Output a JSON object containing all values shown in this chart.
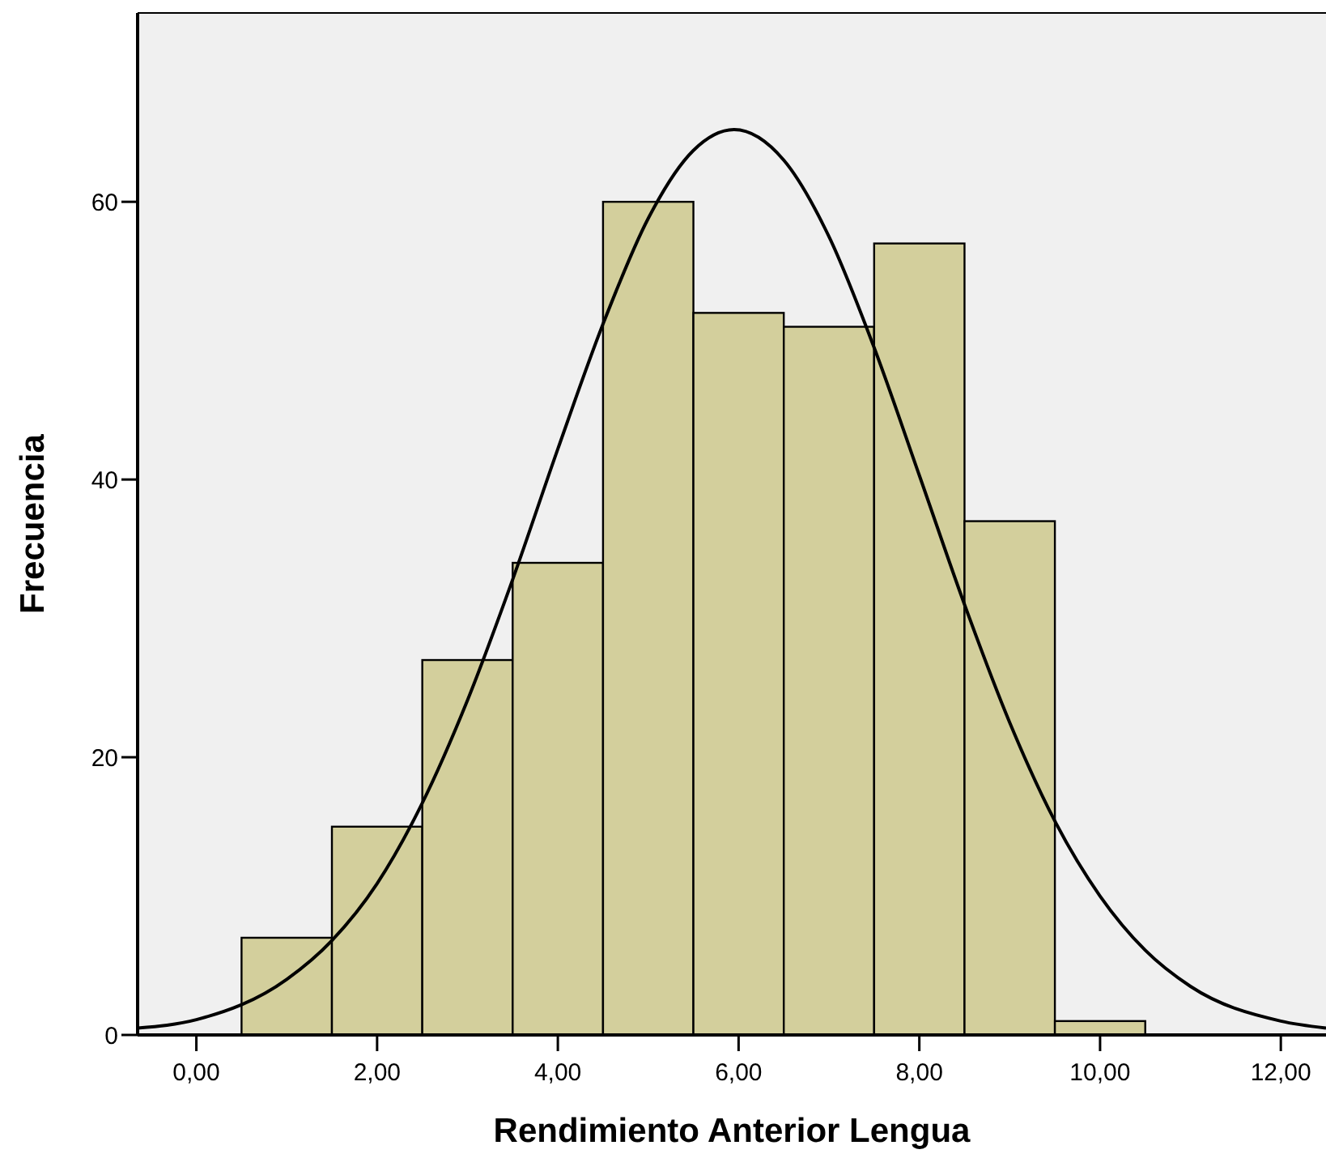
{
  "chart_data": {
    "type": "histogram",
    "xlabel": "Rendimiento Anterior Lengua",
    "ylabel": "Frecuencia",
    "bins": [
      0.5,
      1.5,
      2.5,
      3.5,
      4.5,
      5.5,
      6.5,
      7.5,
      8.5,
      9.5,
      10.5
    ],
    "series": [
      {
        "color": "#d3cf9c",
        "values": [
          7,
          15,
          27,
          34,
          60,
          52,
          51,
          57,
          37,
          1
        ]
      },
      {
        "type": "line",
        "color": "#000000",
        "x": [
          -0.65,
          0,
          1,
          1.5,
          2,
          2.5,
          3,
          3.5,
          4,
          4.5,
          5,
          5.5,
          5.95,
          6.5,
          7,
          7.5,
          8,
          8.5,
          9,
          9.5,
          10,
          10.5,
          11,
          12,
          12.5
        ],
        "values": [
          0.5,
          1.1,
          4,
          6.8,
          10.9,
          16.7,
          24.1,
          32.8,
          42.2,
          51.2,
          58.8,
          63.7,
          65.2,
          63.0,
          57.5,
          49.5,
          40.3,
          31.0,
          22.5,
          15.4,
          10.0,
          6.1,
          3.5,
          1,
          0.5
        ]
      }
    ],
    "xlim": [
      -0.65,
      12.5
    ],
    "xticks": [
      {
        "value": 0,
        "label": "0,00"
      },
      {
        "value": 2,
        "label": "2,00"
      },
      {
        "value": 4,
        "label": "4,00"
      },
      {
        "value": 6,
        "label": "6,00"
      },
      {
        "value": 8,
        "label": "8,00"
      },
      {
        "value": 10,
        "label": "10,00"
      },
      {
        "value": 12,
        "label": "12,00"
      }
    ],
    "ylim": [
      0,
      73.6
    ],
    "yticks": [
      0,
      20,
      40,
      60
    ],
    "grid": false
  }
}
